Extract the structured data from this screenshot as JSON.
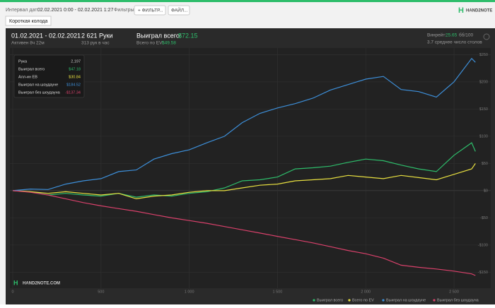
{
  "toolbar": {
    "interval_label": "Интервал дат:",
    "interval_value": "02.02.2021 0:00 - 02.02.2021 1:27",
    "filters_label": "Фильтры:",
    "filter_button": "+ ФИЛЬТР...",
    "file_button": "ФАЙЛ...",
    "logo": "HAND2NOTE"
  },
  "tab": "Короткая колода",
  "summary": {
    "date_range": "01.02.2021 - 02.02.2021",
    "active": "Активен 8ч 22м",
    "hands": "2 621 Руки",
    "hands_per_hour": "313 рук в час",
    "won_label": "Выиграл всего:",
    "won_value": "$72.15",
    "ev_label": "Всего по EV:",
    "ev_value": "$49.58",
    "winrate_label": "Винрейт:",
    "winrate_value": "25.65",
    "winrate_unit": "бб/100",
    "tables": "3.7 среднее число столов"
  },
  "tooltip": {
    "rows": [
      [
        "Рука",
        "2,197"
      ],
      [
        "Выиграл всего",
        "$47.18"
      ],
      [
        "Алл-ин ЕВ",
        "$30.84"
      ],
      [
        "Выиграл на шоудауне",
        "$184.52"
      ],
      [
        "Выиграл без шоудауна",
        "-$137.34"
      ]
    ]
  },
  "watermark": "HAND2NOTE.COM",
  "chart_data": {
    "type": "line",
    "x": [
      0,
      100,
      200,
      300,
      400,
      500,
      600,
      700,
      800,
      900,
      1000,
      1100,
      1200,
      1300,
      1400,
      1500,
      1600,
      1700,
      1800,
      1900,
      2000,
      2100,
      2200,
      2300,
      2400,
      2500,
      2600,
      2621
    ],
    "xlim": [
      0,
      2628
    ],
    "xticks": [
      0,
      500,
      {
        "value": 1000,
        "label": "1 000"
      },
      {
        "value": 1500,
        "label": "1 500"
      },
      {
        "value": 2000,
        "label": "2 000"
      },
      {
        "value": 2500,
        "label": "2 500"
      }
    ],
    "ylim": [
      -169,
      257
    ],
    "yticks": [
      {
        "value": 250,
        "label": "$250"
      },
      {
        "value": 200,
        "label": "$200"
      },
      {
        "value": 150,
        "label": "$150"
      },
      {
        "value": 100,
        "label": "$100"
      },
      {
        "value": 50,
        "label": "$50"
      },
      {
        "value": 0,
        "label": "$0"
      },
      {
        "value": -50,
        "label": "-$50"
      },
      {
        "value": -100,
        "label": "-$100"
      },
      {
        "value": -150,
        "label": "-$150"
      }
    ],
    "grid": true,
    "series": [
      {
        "name": "Выиграл всего",
        "color": "#2ebd6b",
        "values": [
          0,
          -2,
          -8,
          -5,
          -8,
          -10,
          -5,
          -12,
          -8,
          -10,
          -5,
          -2,
          5,
          18,
          20,
          25,
          40,
          42,
          45,
          52,
          58,
          55,
          47,
          40,
          35,
          65,
          88,
          72
        ]
      },
      {
        "name": "Всего по EV",
        "color": "#e8e040",
        "values": [
          0,
          -2,
          -5,
          -2,
          -5,
          -8,
          -5,
          -15,
          -10,
          -8,
          -3,
          0,
          0,
          5,
          10,
          12,
          18,
          20,
          22,
          28,
          25,
          22,
          28,
          24,
          20,
          30,
          40,
          50
        ]
      },
      {
        "name": "Выиграл на шоудауне",
        "color": "#3d8fd9",
        "values": [
          0,
          3,
          2,
          12,
          18,
          22,
          35,
          38,
          58,
          68,
          75,
          88,
          100,
          125,
          142,
          152,
          160,
          170,
          185,
          195,
          205,
          210,
          186,
          182,
          172,
          200,
          243,
          236
        ]
      },
      {
        "name": "Выиграл без шоудауна",
        "color": "#d9416b",
        "values": [
          0,
          -3,
          -8,
          -15,
          -22,
          -28,
          -33,
          -38,
          -44,
          -50,
          -55,
          -60,
          -66,
          -72,
          -78,
          -84,
          -90,
          -96,
          -103,
          -110,
          -116,
          -124,
          -137,
          -141,
          -144,
          -148,
          -153,
          -156
        ]
      }
    ]
  }
}
